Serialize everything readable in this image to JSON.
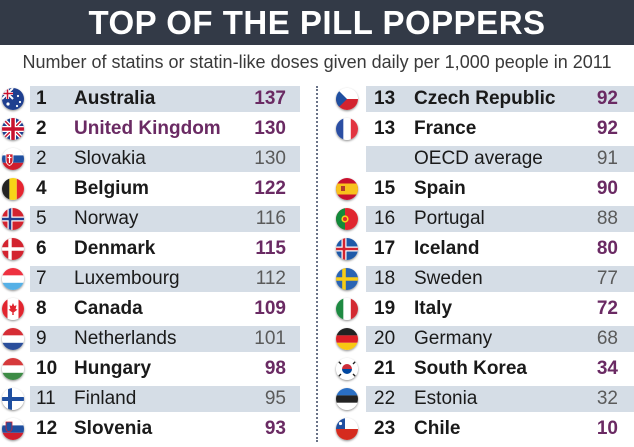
{
  "title": "TOP OF THE PILL POPPERS",
  "subtitle": "Number of statins or statin-like doses given daily per 1,000 people in 2011",
  "colors": {
    "header_bg": "#333a47",
    "band": "#d5dde6",
    "value": "#6a2a63"
  },
  "chart_data": {
    "type": "table",
    "title": "TOP OF THE PILL POPPERS",
    "subtitle": "Number of statins or statin-like doses given daily per 1,000 people in 2011",
    "columns": [
      "rank",
      "country",
      "doses_per_1000_per_day"
    ],
    "left_rows": [
      {
        "rank": "1",
        "country": "Australia",
        "value": "137",
        "flag": "australia-flag-icon",
        "bold": true
      },
      {
        "rank": "2",
        "country": "United Kingdom",
        "value": "130",
        "flag": "uk-flag-icon",
        "bold": true,
        "highlight": true
      },
      {
        "rank": "2",
        "country": "Slovakia",
        "value": "130",
        "flag": "slovakia-flag-icon",
        "bold": false
      },
      {
        "rank": "4",
        "country": "Belgium",
        "value": "122",
        "flag": "belgium-flag-icon",
        "bold": true
      },
      {
        "rank": "5",
        "country": "Norway",
        "value": "116",
        "flag": "norway-flag-icon",
        "bold": false
      },
      {
        "rank": "6",
        "country": "Denmark",
        "value": "115",
        "flag": "denmark-flag-icon",
        "bold": true
      },
      {
        "rank": "7",
        "country": "Luxembourg",
        "value": "112",
        "flag": "luxembourg-flag-icon",
        "bold": false
      },
      {
        "rank": "8",
        "country": "Canada",
        "value": "109",
        "flag": "canada-flag-icon",
        "bold": true
      },
      {
        "rank": "9",
        "country": "Netherlands",
        "value": "101",
        "flag": "netherlands-flag-icon",
        "bold": false
      },
      {
        "rank": "10",
        "country": "Hungary",
        "value": "98",
        "flag": "hungary-flag-icon",
        "bold": true
      },
      {
        "rank": "11",
        "country": "Finland",
        "value": "95",
        "flag": "finland-flag-icon",
        "bold": false
      },
      {
        "rank": "12",
        "country": "Slovenia",
        "value": "93",
        "flag": "slovenia-flag-icon",
        "bold": true
      }
    ],
    "right_rows": [
      {
        "rank": "13",
        "country": "Czech Republic",
        "value": "92",
        "flag": "czech-flag-icon",
        "bold": true
      },
      {
        "rank": "13",
        "country": "France",
        "value": "92",
        "flag": "france-flag-icon",
        "bold": true
      },
      {
        "rank": "",
        "country": "OECD average",
        "value": "91",
        "flag": "",
        "bold": false
      },
      {
        "rank": "15",
        "country": "Spain",
        "value": "90",
        "flag": "spain-flag-icon",
        "bold": true
      },
      {
        "rank": "16",
        "country": "Portugal",
        "value": "88",
        "flag": "portugal-flag-icon",
        "bold": false
      },
      {
        "rank": "17",
        "country": "Iceland",
        "value": "80",
        "flag": "iceland-flag-icon",
        "bold": true
      },
      {
        "rank": "18",
        "country": "Sweden",
        "value": "77",
        "flag": "sweden-flag-icon",
        "bold": false
      },
      {
        "rank": "19",
        "country": "Italy",
        "value": "72",
        "flag": "italy-flag-icon",
        "bold": true
      },
      {
        "rank": "20",
        "country": "Germany",
        "value": "68",
        "flag": "germany-flag-icon",
        "bold": false
      },
      {
        "rank": "21",
        "country": "South Korea",
        "value": "34",
        "flag": "south-korea-flag-icon",
        "bold": true
      },
      {
        "rank": "22",
        "country": "Estonia",
        "value": "32",
        "flag": "estonia-flag-icon",
        "bold": false
      },
      {
        "rank": "23",
        "country": "Chile",
        "value": "10",
        "flag": "chile-flag-icon",
        "bold": true
      }
    ]
  }
}
